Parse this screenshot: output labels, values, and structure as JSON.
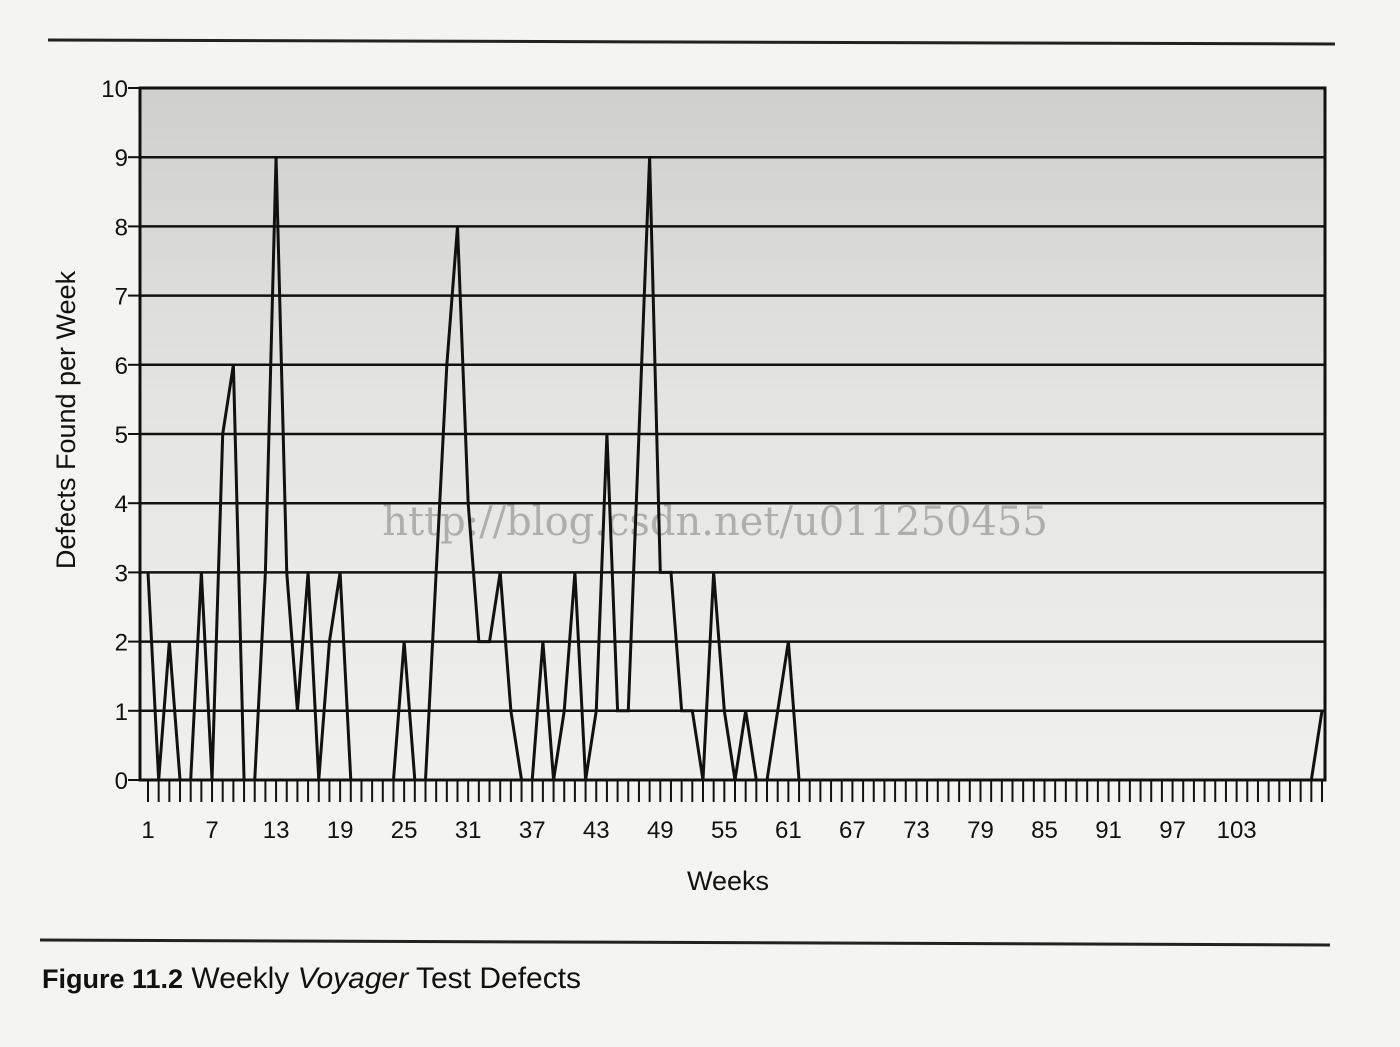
{
  "chart_data": {
    "type": "line",
    "x_label": "Weeks",
    "y_label": "Defects Found per Week",
    "watermark": "http://blog.csdn.net/u011250455",
    "caption": {
      "label": "Figure 11.2",
      "before": "Weekly",
      "emphasis": "Voyager",
      "after": "Test Defects"
    },
    "x": [
      1,
      2,
      3,
      4,
      5,
      6,
      7,
      8,
      9,
      10,
      11,
      12,
      13,
      14,
      15,
      16,
      17,
      18,
      19,
      20,
      21,
      22,
      23,
      24,
      25,
      26,
      27,
      28,
      29,
      30,
      31,
      32,
      33,
      34,
      35,
      36,
      37,
      38,
      39,
      40,
      41,
      42,
      43,
      44,
      45,
      46,
      47,
      48,
      49,
      50,
      51,
      52,
      53,
      54,
      55,
      56,
      57,
      58,
      59,
      60,
      61,
      62,
      63,
      64,
      65,
      66,
      67,
      68,
      69,
      70,
      71,
      72,
      73,
      74,
      75,
      76,
      77,
      78,
      79,
      80,
      81,
      82,
      83,
      84,
      85,
      86,
      87,
      88,
      89,
      90,
      91,
      92,
      93,
      94,
      95,
      96,
      97,
      98,
      99,
      100,
      101,
      102,
      103,
      104,
      105,
      106,
      107,
      108,
      109,
      110,
      111
    ],
    "values": [
      3,
      0,
      2,
      0,
      0,
      3,
      0,
      5,
      6,
      0,
      0,
      3,
      9,
      3,
      1,
      3,
      0,
      2,
      3,
      0,
      0,
      0,
      0,
      0,
      2,
      0,
      0,
      3,
      6,
      8,
      4,
      2,
      2,
      3,
      1,
      0,
      0,
      2,
      0,
      1,
      3,
      0,
      1,
      5,
      1,
      1,
      5,
      9,
      3,
      3,
      1,
      1,
      0,
      3,
      1,
      0,
      1,
      0,
      0,
      1,
      2,
      0,
      0,
      0,
      0,
      0,
      0,
      0,
      0,
      0,
      0,
      0,
      0,
      0,
      0,
      0,
      0,
      0,
      0,
      0,
      0,
      0,
      0,
      0,
      0,
      0,
      0,
      0,
      0,
      0,
      0,
      0,
      0,
      0,
      0,
      0,
      0,
      0,
      0,
      0,
      0,
      0,
      0,
      0,
      0,
      0,
      0,
      0,
      0,
      0,
      1
    ],
    "color": "#111111",
    "xlim": [
      1,
      111
    ],
    "xticks": [
      1,
      7,
      13,
      19,
      25,
      31,
      37,
      43,
      49,
      55,
      61,
      67,
      73,
      79,
      85,
      91,
      97,
      103
    ],
    "ylim": [
      0,
      10
    ],
    "yticks": [
      0,
      1,
      2,
      3,
      4,
      5,
      6,
      7,
      8,
      9,
      10
    ],
    "grid": true
  }
}
